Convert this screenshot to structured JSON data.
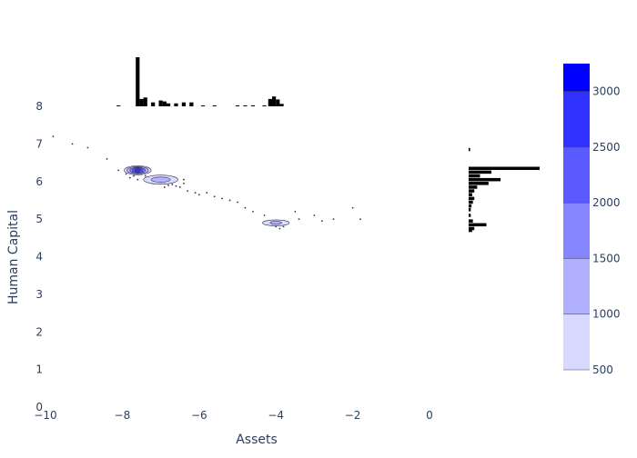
{
  "chart_data": {
    "type": "contour",
    "xlabel": "Assets",
    "ylabel": "Human Capital",
    "xlim": [
      -10,
      1
    ],
    "ylim": [
      0,
      8.25
    ],
    "x_ticks": [
      "−10",
      "−8",
      "−6",
      "−4",
      "−2",
      "0"
    ],
    "x_tick_values": [
      -10,
      -8,
      -6,
      -4,
      -2,
      0
    ],
    "y_ticks": [
      "0",
      "1",
      "2",
      "3",
      "4",
      "5",
      "6",
      "7",
      "8"
    ],
    "y_tick_values": [
      0,
      1,
      2,
      3,
      4,
      5,
      6,
      7,
      8
    ],
    "colorbar": {
      "ticks": [
        "500",
        "1000",
        "1500",
        "2000",
        "2500",
        "3000"
      ],
      "tick_values": [
        500,
        1000,
        1500,
        2000,
        2500,
        3000
      ],
      "range": [
        500,
        3250
      ],
      "levels": [
        500,
        1000,
        1500,
        2000,
        2500,
        3000,
        3250
      ],
      "colors": [
        "#d9d9ff",
        "#b0b0ff",
        "#8585ff",
        "#5a5aff",
        "#3030ff",
        "#0000ff"
      ]
    },
    "contours": [
      {
        "cx": -7.6,
        "cy": 6.3,
        "levels": [
          {
            "rx": 0.35,
            "ry": 0.12,
            "v": 500
          },
          {
            "rx": 0.28,
            "ry": 0.1,
            "v": 1000
          },
          {
            "rx": 0.2,
            "ry": 0.08,
            "v": 1500
          },
          {
            "rx": 0.14,
            "ry": 0.06,
            "v": 2000
          },
          {
            "rx": 0.08,
            "ry": 0.04,
            "v": 2500
          }
        ]
      },
      {
        "cx": -7.0,
        "cy": 6.05,
        "levels": [
          {
            "rx": 0.45,
            "ry": 0.12,
            "v": 500
          },
          {
            "rx": 0.25,
            "ry": 0.07,
            "v": 1000
          }
        ]
      },
      {
        "cx": -4.0,
        "cy": 4.9,
        "levels": [
          {
            "rx": 0.35,
            "ry": 0.08,
            "v": 500
          },
          {
            "rx": 0.15,
            "ry": 0.04,
            "v": 1000
          }
        ]
      }
    ],
    "scatter": [
      [
        -9.8,
        7.2
      ],
      [
        -9.3,
        7.0
      ],
      [
        -8.9,
        6.9
      ],
      [
        -8.4,
        6.6
      ],
      [
        -8.1,
        6.3
      ],
      [
        -7.9,
        6.2
      ],
      [
        -7.8,
        6.1
      ],
      [
        -7.7,
        6.15
      ],
      [
        -7.5,
        6.2
      ],
      [
        -7.4,
        6.15
      ],
      [
        -7.3,
        6.1
      ],
      [
        -7.2,
        6.05
      ],
      [
        -7.1,
        6.0
      ],
      [
        -7.0,
        5.95
      ],
      [
        -6.9,
        5.95
      ],
      [
        -6.8,
        5.9
      ],
      [
        -6.7,
        5.92
      ],
      [
        -6.6,
        5.88
      ],
      [
        -6.5,
        5.85
      ],
      [
        -6.4,
        5.95
      ],
      [
        -6.4,
        6.05
      ],
      [
        -6.3,
        5.75
      ],
      [
        -6.1,
        5.7
      ],
      [
        -6.0,
        5.65
      ],
      [
        -5.8,
        5.7
      ],
      [
        -5.6,
        5.6
      ],
      [
        -5.4,
        5.55
      ],
      [
        -5.2,
        5.5
      ],
      [
        -5.0,
        5.45
      ],
      [
        -4.8,
        5.3
      ],
      [
        -4.6,
        5.2
      ],
      [
        -4.3,
        5.1
      ],
      [
        -4.2,
        4.9
      ],
      [
        -4.1,
        4.85
      ],
      [
        -4.0,
        4.8
      ],
      [
        -3.9,
        4.75
      ],
      [
        -3.8,
        4.8
      ],
      [
        -3.5,
        5.2
      ],
      [
        -3.4,
        5.0
      ],
      [
        -3.0,
        5.1
      ],
      [
        -2.8,
        4.95
      ],
      [
        -2.5,
        5.0
      ],
      [
        -2.0,
        5.3
      ],
      [
        -1.8,
        5.0
      ],
      [
        -7.6,
        6.05
      ],
      [
        -7.2,
        5.95
      ],
      [
        -6.9,
        5.85
      ]
    ],
    "hist_x": {
      "bins": [
        [
          -8.1,
          0.01
        ],
        [
          -7.6,
          1.0
        ],
        [
          -7.5,
          0.15
        ],
        [
          -7.4,
          0.18
        ],
        [
          -7.2,
          0.08
        ],
        [
          -7.0,
          0.12
        ],
        [
          -6.9,
          0.1
        ],
        [
          -6.8,
          0.06
        ],
        [
          -6.6,
          0.06
        ],
        [
          -6.4,
          0.08
        ],
        [
          -6.2,
          0.08
        ],
        [
          -5.9,
          0.01
        ],
        [
          -5.6,
          0.01
        ],
        [
          -5.0,
          0.01
        ],
        [
          -4.8,
          0.02
        ],
        [
          -4.6,
          0.02
        ],
        [
          -4.3,
          0.02
        ],
        [
          -4.15,
          0.15
        ],
        [
          -4.05,
          0.2
        ],
        [
          -3.95,
          0.14
        ],
        [
          -3.85,
          0.05
        ]
      ],
      "bin_width": 0.1
    },
    "hist_y": {
      "bins": [
        [
          6.85,
          0.02
        ],
        [
          6.35,
          1.0
        ],
        [
          6.25,
          0.32
        ],
        [
          6.15,
          0.16
        ],
        [
          6.05,
          0.45
        ],
        [
          5.95,
          0.28
        ],
        [
          5.85,
          0.12
        ],
        [
          5.75,
          0.08
        ],
        [
          5.65,
          0.05
        ],
        [
          5.55,
          0.08
        ],
        [
          5.45,
          0.06
        ],
        [
          5.35,
          0.04
        ],
        [
          5.25,
          0.03
        ],
        [
          5.1,
          0.03
        ],
        [
          4.95,
          0.06
        ],
        [
          4.85,
          0.25
        ],
        [
          4.75,
          0.08
        ],
        [
          4.7,
          0.05
        ]
      ],
      "bin_width": 0.1
    }
  }
}
